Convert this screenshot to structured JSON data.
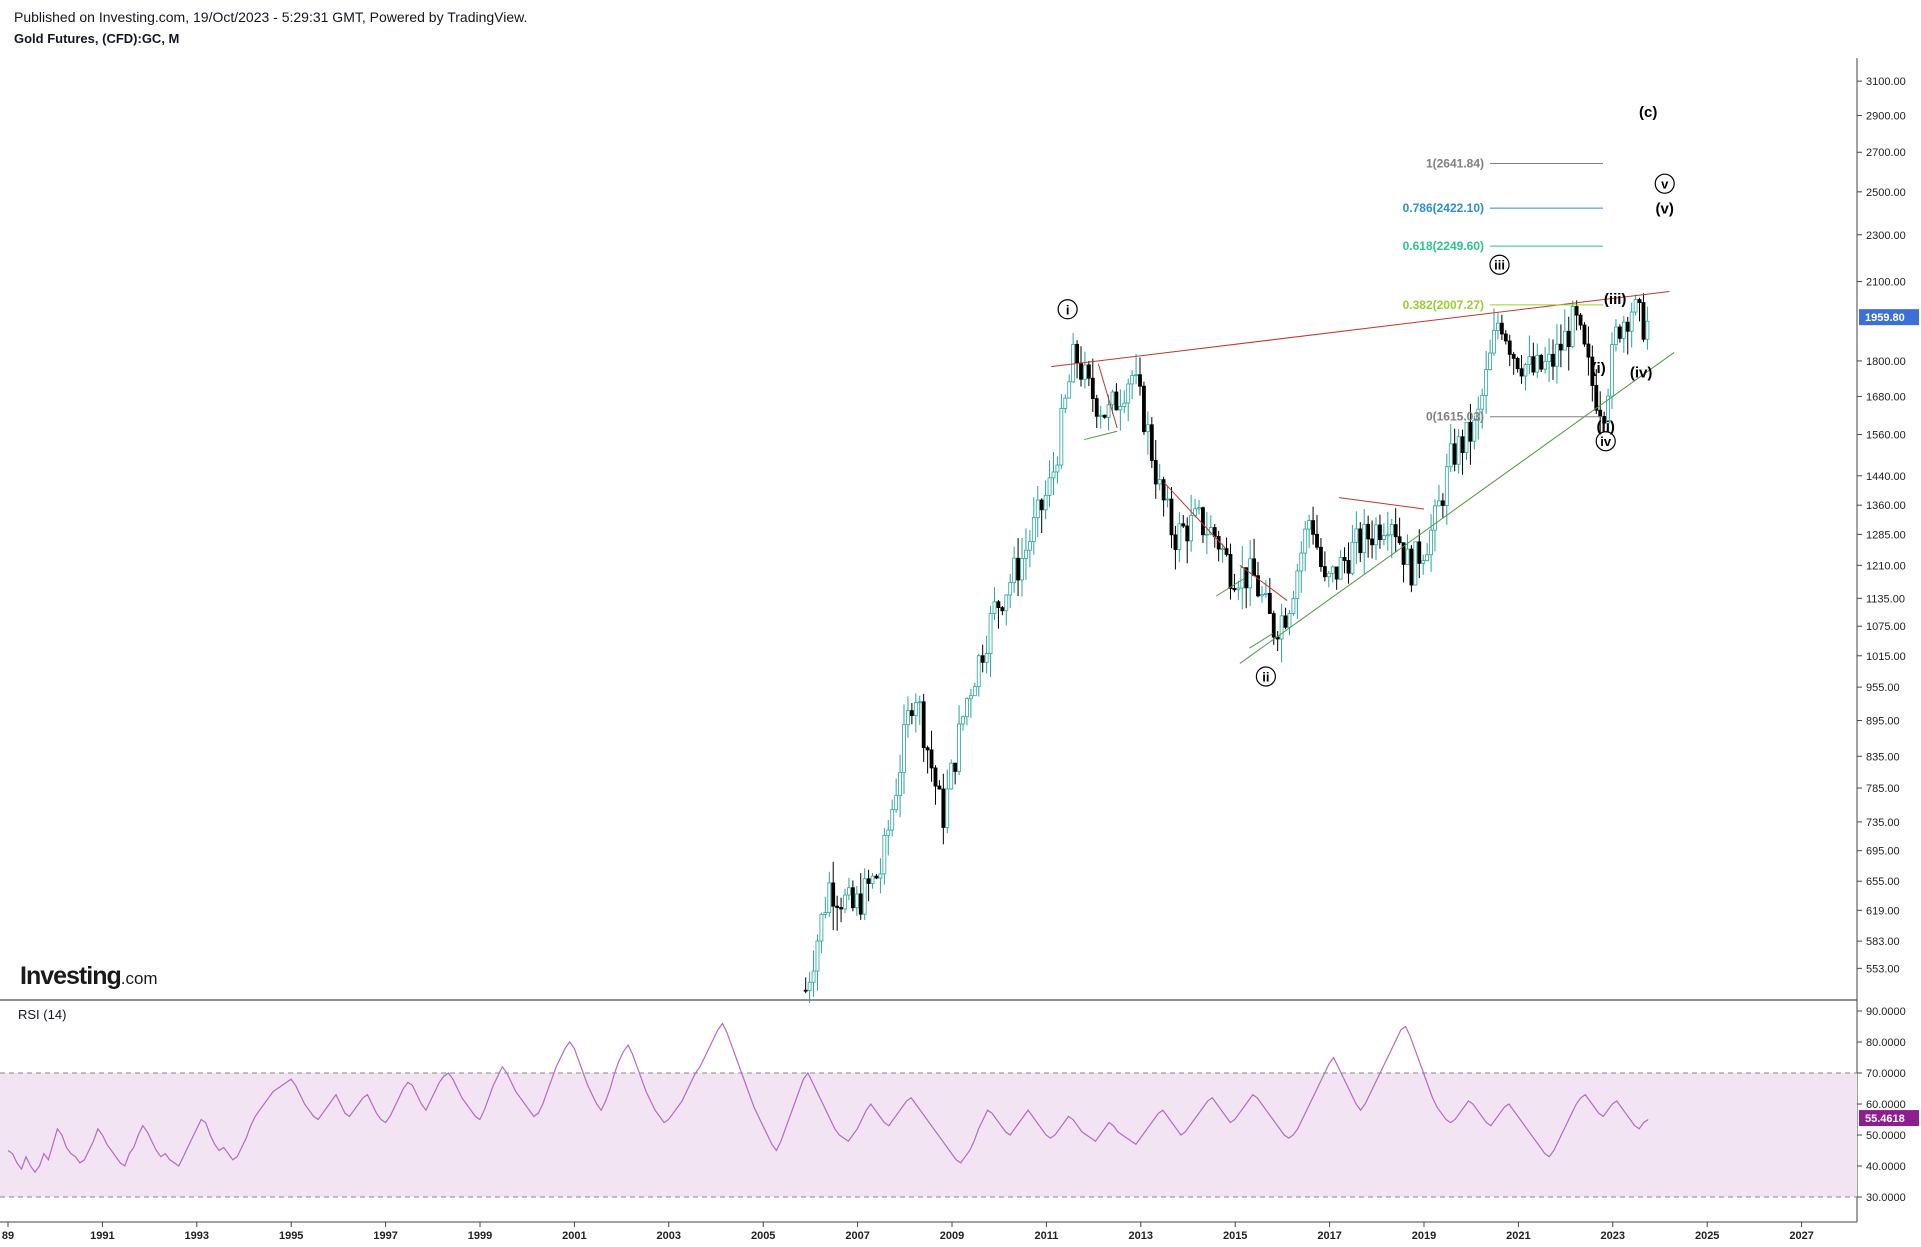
{
  "header": {
    "publish_line": "Published on Investing.com, 19/Oct/2023 - 5:29:31 GMT, Powered by TradingView.",
    "symbol_line": "Gold Futures, (CFD):GC, M"
  },
  "logo": {
    "brand": "Investing",
    "suffix": ".com"
  },
  "rsi_title": "RSI (14)",
  "colors": {
    "bull": "#26a69a",
    "bear": "#000000",
    "rsi_line": "#b867c9",
    "rsi_band": "#f2e4f2",
    "resistance": "#c0392b",
    "support": "#4a9a3a",
    "last_price_bg": "#3d6fd8",
    "rsi_value_bg": "#8e1d8e"
  },
  "chart_data": {
    "type": "candlestick",
    "symbol": "GC",
    "timeframe": "M",
    "x_start_year": 1989,
    "x_end_year": 2028,
    "year_ticks": [
      "89",
      "1991",
      "1993",
      "1995",
      "1997",
      "1999",
      "2001",
      "2003",
      "2005",
      "2007",
      "2009",
      "2011",
      "2013",
      "2015",
      "2017",
      "2019",
      "2021",
      "2023",
      "2025",
      "2027"
    ],
    "price_scale": "log",
    "price_ticks": [
      "3100.00",
      "2900.00",
      "2700.00",
      "2500.00",
      "2300.00",
      "2100.00",
      "1800.00",
      "1680.00",
      "1560.00",
      "1440.00",
      "1360.00",
      "1285.00",
      "1210.00",
      "1135.00",
      "1075.00",
      "1015.00",
      "955.00",
      "895.00",
      "835.00",
      "785.00",
      "735.00",
      "695.00",
      "655.00",
      "619.00",
      "583.00",
      "553.00"
    ],
    "last_price": "1959.80",
    "price_path": [
      [
        2005.9,
        530
      ],
      [
        2006.4,
        650
      ],
      [
        2006.9,
        620
      ],
      [
        2007.5,
        670
      ],
      [
        2008.2,
        960
      ],
      [
        2008.8,
        740
      ],
      [
        2009.3,
        930
      ],
      [
        2009.9,
        1110
      ],
      [
        2010.5,
        1230
      ],
      [
        2011.1,
        1420
      ],
      [
        2011.6,
        1830
      ],
      [
        2011.9,
        1700
      ],
      [
        2012.3,
        1620
      ],
      [
        2012.8,
        1760
      ],
      [
        2013.1,
        1600
      ],
      [
        2013.4,
        1400
      ],
      [
        2013.7,
        1280
      ],
      [
        2014.2,
        1320
      ],
      [
        2014.6,
        1280
      ],
      [
        2014.9,
        1200
      ],
      [
        2015.4,
        1180
      ],
      [
        2015.8,
        1070
      ],
      [
        2016.1,
        1110
      ],
      [
        2016.6,
        1340
      ],
      [
        2016.9,
        1160
      ],
      [
        2017.5,
        1250
      ],
      [
        2017.9,
        1290
      ],
      [
        2018.3,
        1340
      ],
      [
        2018.7,
        1200
      ],
      [
        2019.2,
        1300
      ],
      [
        2019.6,
        1500
      ],
      [
        2020.1,
        1580
      ],
      [
        2020.6,
        1970
      ],
      [
        2020.9,
        1830
      ],
      [
        2021.3,
        1760
      ],
      [
        2021.7,
        1790
      ],
      [
        2022.2,
        1950
      ],
      [
        2022.6,
        1700
      ],
      [
        2022.8,
        1640
      ],
      [
        2023.1,
        1920
      ],
      [
        2023.4,
        2000
      ],
      [
        2023.6,
        1940
      ],
      [
        2023.8,
        1930
      ]
    ],
    "trendlines": [
      {
        "kind": "resistance",
        "from": [
          2011.1,
          1780
        ],
        "to": [
          2024.2,
          2060
        ]
      },
      {
        "kind": "support",
        "from": [
          2015.1,
          1000
        ],
        "to": [
          2024.3,
          1830
        ]
      },
      {
        "kind": "resistance",
        "from": [
          2012.1,
          1790
        ],
        "to": [
          2012.5,
          1580
        ]
      },
      {
        "kind": "support",
        "from": [
          2011.8,
          1545
        ],
        "to": [
          2012.5,
          1570
        ]
      },
      {
        "kind": "resistance",
        "from": [
          2013.5,
          1420
        ],
        "to": [
          2014.8,
          1250
        ]
      },
      {
        "kind": "support",
        "from": [
          2014.6,
          1140
        ],
        "to": [
          2015.2,
          1180
        ]
      },
      {
        "kind": "resistance",
        "from": [
          2015.1,
          1210
        ],
        "to": [
          2016.1,
          1130
        ]
      },
      {
        "kind": "support",
        "from": [
          2015.3,
          1030
        ],
        "to": [
          2015.8,
          1060
        ]
      },
      {
        "kind": "resistance",
        "from": [
          2017.2,
          1380
        ],
        "to": [
          2019.0,
          1350
        ]
      }
    ],
    "fibonacci": [
      {
        "label": "1(2641.84)",
        "price": 2641.84,
        "color": "#808080"
      },
      {
        "label": "0.786(2422.10)",
        "price": 2422.1,
        "color": "#2b8ecf"
      },
      {
        "label": "0.618(2249.60)",
        "price": 2249.6,
        "color": "#2ec48f"
      },
      {
        "label": "0.382(2007.27)",
        "price": 2007.27,
        "color": "#9acd32"
      },
      {
        "label": "0(1615.03)",
        "price": 1615.03,
        "color": "#808080"
      }
    ],
    "wave_labels": [
      {
        "text": "i",
        "circled": true,
        "year": 2011.45,
        "price": 1990
      },
      {
        "text": "ii",
        "circled": true,
        "year": 2015.65,
        "price": 975
      },
      {
        "text": "iii",
        "circled": true,
        "year": 2020.6,
        "price": 2170
      },
      {
        "text": "iv",
        "circled": true,
        "year": 2022.85,
        "price": 1540
      },
      {
        "text": "v",
        "circled": true,
        "year": 2024.1,
        "price": 2540
      },
      {
        "text": "(i)",
        "circled": false,
        "year": 2022.7,
        "price": 1775
      },
      {
        "text": "(ii)",
        "circled": false,
        "year": 2022.85,
        "price": 1585
      },
      {
        "text": "(iii)",
        "circled": false,
        "year": 2023.05,
        "price": 2030
      },
      {
        "text": "(iv)",
        "circled": false,
        "year": 2023.6,
        "price": 1760
      },
      {
        "text": "(v)",
        "circled": false,
        "year": 2024.1,
        "price": 2420
      },
      {
        "text": "(c)",
        "circled": false,
        "year": 2023.75,
        "price": 2920
      }
    ],
    "rsi": {
      "title": "RSI (14)",
      "ticks": [
        "90.0000",
        "80.0000",
        "70.0000",
        "60.0000",
        "50.0000",
        "40.0000",
        "30.0000"
      ],
      "upper_band": 70,
      "lower_band": 30,
      "last_value": "55.4618",
      "values": [
        45,
        44,
        41,
        39,
        43,
        40,
        38,
        40,
        44,
        42,
        47,
        52,
        50,
        46,
        44,
        43,
        41,
        42,
        45,
        48,
        52,
        50,
        47,
        45,
        43,
        41,
        40,
        44,
        46,
        50,
        53,
        51,
        48,
        45,
        43,
        44,
        42,
        41,
        40,
        43,
        46,
        49,
        52,
        55,
        54,
        50,
        47,
        45,
        46,
        44,
        42,
        43,
        46,
        49,
        53,
        56,
        58,
        60,
        62,
        64,
        65,
        66,
        67,
        68,
        66,
        63,
        60,
        58,
        56,
        55,
        57,
        59,
        61,
        63,
        60,
        57,
        56,
        58,
        60,
        62,
        63,
        60,
        57,
        55,
        54,
        56,
        59,
        62,
        65,
        67,
        66,
        63,
        60,
        58,
        61,
        64,
        67,
        69,
        70,
        68,
        65,
        62,
        60,
        58,
        56,
        55,
        58,
        62,
        66,
        69,
        72,
        70,
        67,
        64,
        62,
        60,
        58,
        56,
        57,
        60,
        64,
        68,
        72,
        75,
        78,
        80,
        78,
        74,
        70,
        66,
        63,
        60,
        58,
        61,
        65,
        70,
        74,
        77,
        79,
        76,
        72,
        68,
        64,
        61,
        58,
        56,
        54,
        55,
        57,
        59,
        61,
        64,
        67,
        70,
        72,
        75,
        78,
        81,
        84,
        86,
        83,
        79,
        75,
        71,
        67,
        63,
        59,
        56,
        53,
        50,
        47,
        45,
        48,
        52,
        56,
        60,
        64,
        68,
        70,
        67,
        64,
        61,
        58,
        55,
        52,
        50,
        49,
        48,
        50,
        52,
        55,
        58,
        60,
        58,
        56,
        54,
        53,
        55,
        57,
        59,
        61,
        62,
        60,
        58,
        56,
        54,
        52,
        50,
        48,
        46,
        44,
        42,
        41,
        43,
        45,
        48,
        52,
        55,
        58,
        57,
        55,
        53,
        51,
        50,
        52,
        54,
        56,
        58,
        56,
        54,
        52,
        50,
        49,
        50,
        52,
        54,
        56,
        55,
        53,
        51,
        50,
        49,
        48,
        50,
        52,
        54,
        53,
        51,
        50,
        49,
        48,
        47,
        49,
        51,
        53,
        55,
        57,
        58,
        56,
        54,
        52,
        50,
        51,
        53,
        55,
        57,
        59,
        61,
        62,
        60,
        58,
        56,
        54,
        55,
        57,
        59,
        61,
        63,
        62,
        60,
        58,
        56,
        54,
        52,
        50,
        49,
        50,
        52,
        55,
        58,
        61,
        64,
        67,
        70,
        73,
        75,
        72,
        69,
        66,
        63,
        60,
        58,
        60,
        63,
        66,
        69,
        72,
        75,
        78,
        81,
        84,
        85,
        82,
        78,
        74,
        70,
        66,
        62,
        59,
        57,
        55,
        54,
        55,
        57,
        59,
        61,
        60,
        58,
        56,
        54,
        53,
        55,
        57,
        59,
        60,
        58,
        56,
        54,
        52,
        50,
        48,
        46,
        44,
        43,
        45,
        48,
        51,
        54,
        57,
        60,
        62,
        63,
        61,
        59,
        57,
        56,
        58,
        60,
        61,
        59,
        57,
        55,
        53,
        52,
        54,
        55
      ]
    }
  }
}
